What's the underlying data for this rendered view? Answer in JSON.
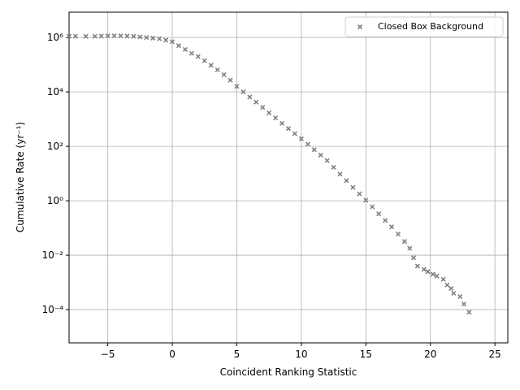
{
  "chart_data": {
    "type": "scatter",
    "xlabel": "Coincident Ranking Statistic",
    "ylabel": "Cumulative Rate (yr⁻¹)",
    "log_y": true,
    "grid": true,
    "legend": "upper right",
    "marker": "x",
    "xlim": [
      -8,
      26
    ],
    "xticks": [
      {
        "value": -5,
        "label": "−5"
      },
      0,
      5,
      10,
      15,
      20,
      25
    ],
    "ylim": [
      6e-06,
      8500000
    ],
    "yticks": [
      {
        "value": 0.0001,
        "label": "10⁻⁴"
      },
      {
        "value": 0.01,
        "label": "10⁻²"
      },
      {
        "value": 1,
        "label": "10⁰"
      },
      {
        "value": 100,
        "label": "10²"
      },
      {
        "value": 10000,
        "label": "10⁴"
      },
      {
        "value": 1000000,
        "label": "10⁶"
      }
    ],
    "series": [
      {
        "name": "Closed Box Background",
        "color": "#808080",
        "x": [
          -8,
          -7.5,
          -6.7,
          -6,
          -5.5,
          -5,
          -4.5,
          -4,
          -3.5,
          -3,
          -2.5,
          -2,
          -1.5,
          -1,
          -0.5,
          0,
          0.5,
          1,
          1.5,
          2,
          2.5,
          3,
          3.5,
          4,
          4.5,
          5,
          5.5,
          6,
          6.5,
          7,
          7.5,
          8,
          8.5,
          9,
          9.5,
          10,
          10.5,
          11,
          11.5,
          12,
          12.5,
          13,
          13.5,
          14,
          14.5,
          15,
          15.5,
          16,
          16.5,
          17,
          17.5,
          18,
          18.4,
          18.7,
          19,
          19.5,
          19.8,
          20.2,
          20.5,
          21,
          21.3,
          21.6,
          21.8,
          22.3,
          22.6,
          23
        ],
        "values": [
          1100000,
          1100000,
          1100000,
          1100000,
          1120000,
          1150000,
          1150000,
          1150000,
          1120000,
          1100000,
          1050000,
          1000000,
          950000,
          900000,
          800000,
          700000,
          500000,
          360000,
          260000,
          200000,
          140000,
          95000,
          65000,
          43000,
          27000,
          16000,
          10000,
          6500,
          4200,
          2700,
          1700,
          1100,
          700,
          450,
          290,
          190,
          120,
          75,
          48,
          30,
          17,
          9.5,
          5.5,
          3.1,
          1.8,
          1.05,
          0.6,
          0.33,
          0.19,
          0.11,
          0.06,
          0.032,
          0.018,
          0.008,
          0.004,
          0.003,
          0.0025,
          0.002,
          0.0017,
          0.0013,
          0.0008,
          0.0006,
          0.0004,
          0.0003,
          0.00016,
          8e-05
        ]
      }
    ]
  }
}
